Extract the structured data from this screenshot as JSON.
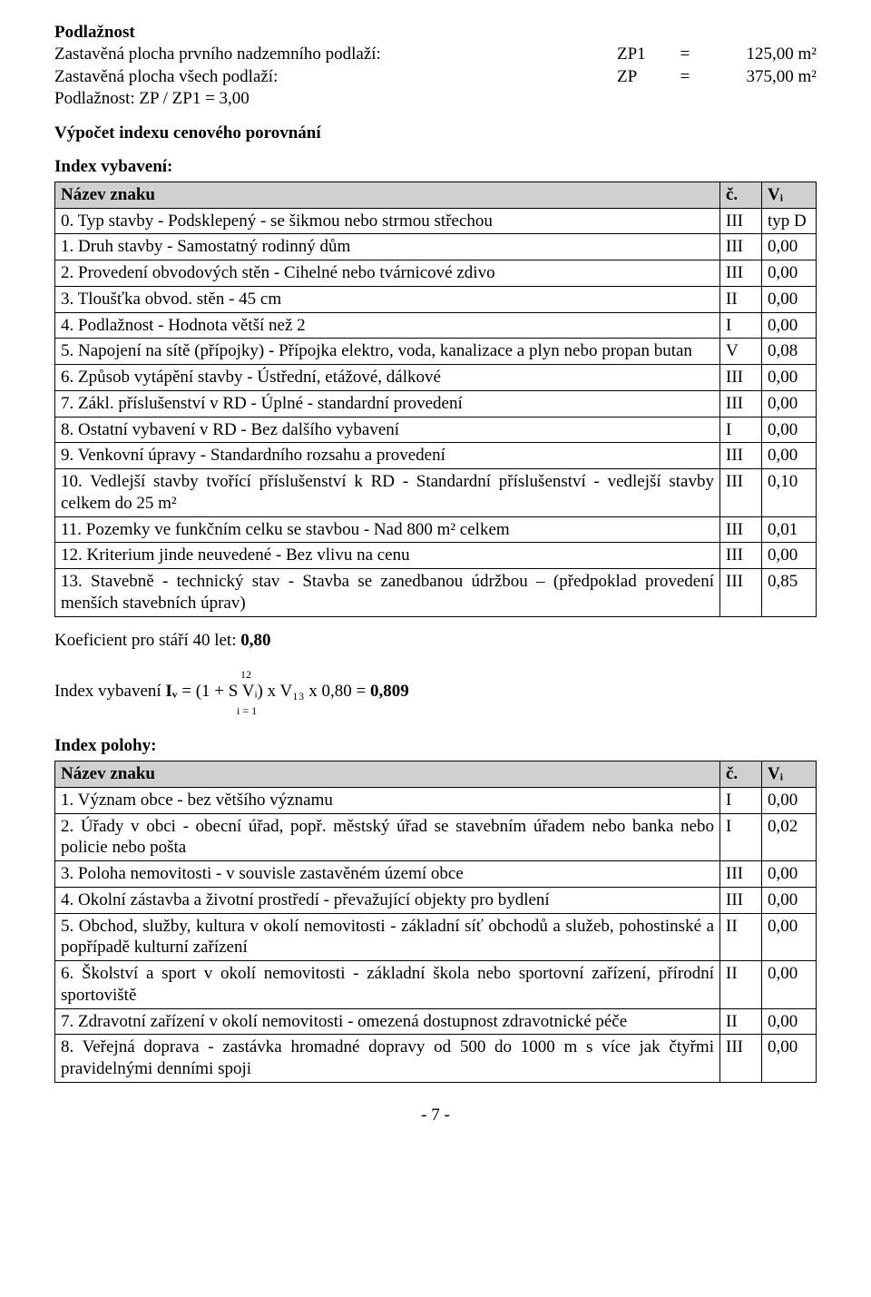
{
  "podlaznost_title": "Podlažnost",
  "zp1": {
    "label": "Zastavěná plocha prvního nadzemního podlaží:",
    "code": "ZP1",
    "eq": "=",
    "value": "125,00 m²"
  },
  "zp": {
    "label": "Zastavěná plocha všech podlaží:",
    "code": "ZP",
    "eq": "=",
    "value": "375,00 m²"
  },
  "podl_ratio": "Podlažnost: ZP / ZP1 = 3,00",
  "vypocet_title": "Výpočet indexu cenového porovnání",
  "index_vyb_title": "Index vybavení:",
  "header_nazev": "Název znaku",
  "header_c": "č.",
  "header_v": "Vᵢ",
  "vyb_rows": [
    {
      "t": "0. Typ stavby - Podsklepený - se šikmou nebo strmou střechou",
      "c": "III",
      "v": "typ D"
    },
    {
      "t": "1. Druh stavby - Samostatný rodinný dům",
      "c": "III",
      "v": "0,00"
    },
    {
      "t": "2. Provedení obvodových stěn - Cihelné nebo tvárnicové zdivo",
      "c": "III",
      "v": "0,00"
    },
    {
      "t": "3. Tloušťka obvod. stěn - 45 cm",
      "c": "II",
      "v": "0,00"
    },
    {
      "t": "4. Podlažnost - Hodnota větší než 2",
      "c": "I",
      "v": "0,00"
    },
    {
      "t": "5. Napojení na sítě (přípojky) - Přípojka elektro, voda,  kanalizace a plyn nebo propan butan",
      "c": "V",
      "v": "0,08"
    },
    {
      "t": "6. Způsob vytápění stavby - Ústřední, etážové, dálkové",
      "c": "III",
      "v": "0,00"
    },
    {
      "t": "7. Zákl. příslušenství v RD - Úplné - standardní provedení",
      "c": "III",
      "v": "0,00"
    },
    {
      "t": "8. Ostatní vybavení v RD - Bez dalšího vybavení",
      "c": "I",
      "v": "0,00"
    },
    {
      "t": "9. Venkovní úpravy - Standardního rozsahu a provedení",
      "c": "III",
      "v": "0,00"
    },
    {
      "t": "10. Vedlejší stavby tvořící příslušenství k RD - Standardní příslušenství - vedlejší stavby celkem  do 25 m²",
      "c": "III",
      "v": "0,10",
      "justify": true
    },
    {
      "t": "11. Pozemky ve funkčním celku  se stavbou - Nad 800 m² celkem",
      "c": "III",
      "v": "0,01"
    },
    {
      "t": "12. Kriterium jinde neuvedené - Bez vlivu na cenu",
      "c": "III",
      "v": "0,00"
    },
    {
      "t": "13. Stavebně - technický stav - Stavba se zanedbanou údržbou – (předpoklad provedení menších stavebních úprav)",
      "c": "III",
      "v": "0,85",
      "justify": true
    }
  ],
  "koef_prefix": "Koeficient pro stáří 40 let: ",
  "koef_value": "0,80",
  "formula_top": "12",
  "formula_prefix": "Index vybavení ",
  "formula_iv": "Iᵥ",
  "formula_mid": " = (1 + S Vᵢ) x V₁₃ x 0,80 = ",
  "formula_res": "0,809",
  "formula_bot": "i = 1",
  "index_pol_title": "Index polohy:",
  "pol_rows": [
    {
      "t": "1. Význam obce - bez většího významu",
      "c": "I",
      "v": "0,00"
    },
    {
      "t": "2. Úřady v obci - obecní úřad, popř. městský úřad se stavebním úřadem nebo banka nebo policie nebo pošta",
      "c": "I",
      "v": "0,02",
      "justify": true
    },
    {
      "t": "3. Poloha nemovitosti - v souvisle zastavěném území obce",
      "c": "III",
      "v": "0,00"
    },
    {
      "t": "4. Okolní zástavba a životní prostředí - převažující objekty pro bydlení",
      "c": "III",
      "v": "0,00",
      "justify": true
    },
    {
      "t": "5. Obchod, služby, kultura v okolí nemovitosti - základní síť obchodů a služeb, pohostinské a popřípadě kulturní zařízení",
      "c": "II",
      "v": "0,00",
      "justify": true
    },
    {
      "t": "6. Školství a sport v okolí nemovitosti - základní škola nebo sportovní zařízení, přírodní sportoviště",
      "c": "II",
      "v": "0,00",
      "justify": true
    },
    {
      "t": "7. Zdravotní zařízení v okolí nemovitosti - omezená dostupnost zdravotnické péče",
      "c": "II",
      "v": "0,00",
      "justify": true
    },
    {
      "t": "8. Veřejná doprava - zastávka hromadné dopravy od 500 do 1000 m s více jak čtyřmi pravidelnými denními spoji",
      "c": "III",
      "v": "0,00",
      "justify": true
    }
  ],
  "pagenum": "- 7 -"
}
